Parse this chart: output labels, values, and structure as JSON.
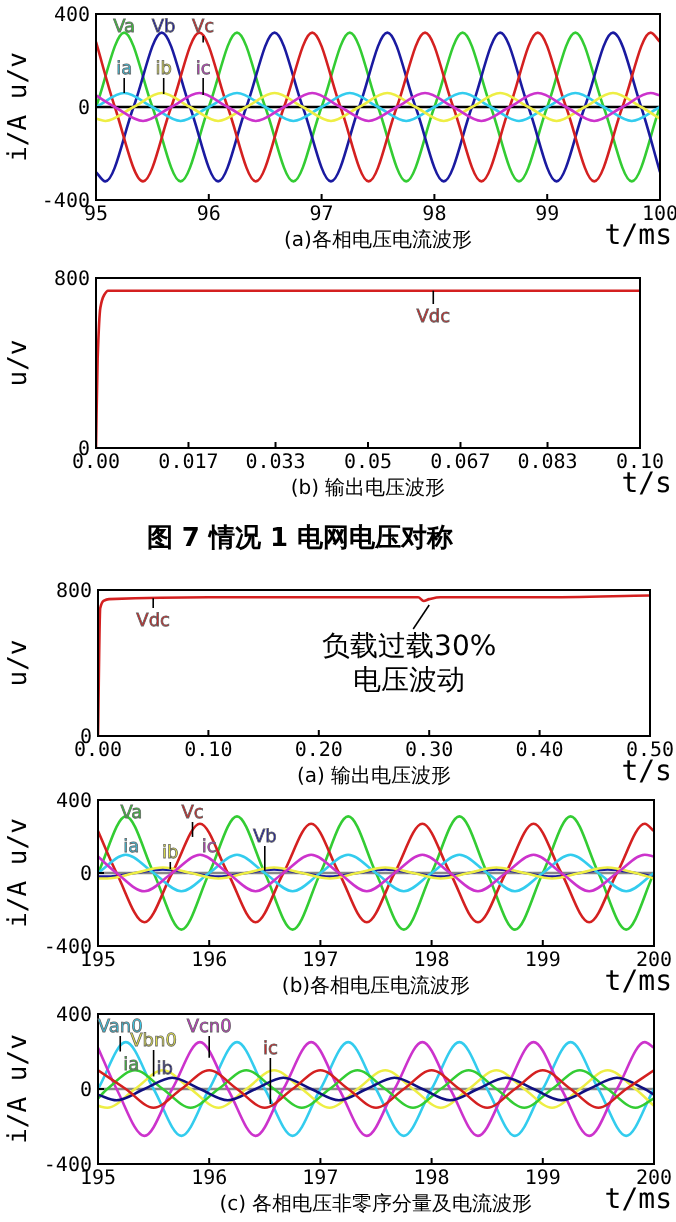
{
  "chart_data": [
    {
      "type": "line",
      "title": "(a)各相电压电流波形",
      "xlabel": "t/ms",
      "ylabel": "i/A u/v",
      "xlim": [
        95,
        100
      ],
      "ylim": [
        -400,
        400
      ],
      "xticks": [
        95,
        96,
        97,
        98,
        99,
        100
      ],
      "yticks": [
        -400,
        0,
        400
      ],
      "ref_lines": [
        {
          "axis": "y",
          "value": 0,
          "color": "#000000"
        }
      ],
      "series": [
        {
          "name": "Va",
          "color": "#33cc33",
          "x": [
            95,
            95.25,
            95.5,
            95.75,
            96,
            96.25,
            96.5,
            96.75,
            97,
            97.25,
            97.5,
            97.75,
            98,
            98.25,
            98.5,
            98.75,
            99,
            99.25,
            99.5,
            99.75,
            100
          ],
          "values": [
            0,
            320,
            0,
            -320,
            0,
            320,
            0,
            -320,
            0,
            320,
            0,
            -320,
            0,
            320,
            0,
            -320,
            0,
            320,
            0,
            -320,
            0
          ]
        },
        {
          "name": "Vb",
          "color": "#1a1aa0",
          "x": [
            95,
            95.083,
            95.333,
            95.583,
            95.833,
            96.083,
            96.333,
            96.583,
            96.833,
            97.083,
            97.333,
            97.583,
            97.833,
            98.083,
            98.333,
            98.583,
            98.833,
            99.083,
            99.333,
            99.583,
            99.833,
            100
          ],
          "values": [
            -280,
            -320,
            0,
            320,
            0,
            -320,
            0,
            320,
            0,
            -320,
            0,
            320,
            0,
            -320,
            0,
            320,
            0,
            -320,
            0,
            320,
            0,
            -280
          ]
        },
        {
          "name": "Vc",
          "color": "#d42020",
          "x": [
            95,
            95.167,
            95.417,
            95.667,
            95.917,
            96.167,
            96.417,
            96.667,
            96.917,
            97.167,
            97.417,
            97.667,
            97.917,
            98.167,
            98.417,
            98.667,
            98.917,
            99.167,
            99.417,
            99.667,
            99.917,
            100
          ],
          "values": [
            280,
            0,
            -320,
            0,
            320,
            0,
            -320,
            0,
            320,
            0,
            -320,
            0,
            320,
            0,
            -320,
            0,
            320,
            0,
            -320,
            0,
            320,
            280
          ]
        },
        {
          "name": "ia",
          "color": "#33ccee",
          "x": [
            95,
            95.25,
            95.5,
            95.75,
            96,
            96.25,
            96.5,
            96.75,
            97,
            97.25,
            97.5,
            97.75,
            98,
            98.25,
            98.5,
            98.75,
            99,
            99.25,
            99.5,
            99.75,
            100
          ],
          "values": [
            0,
            60,
            0,
            -60,
            0,
            60,
            0,
            -60,
            0,
            60,
            0,
            -60,
            0,
            60,
            0,
            -60,
            0,
            60,
            0,
            -60,
            0
          ]
        },
        {
          "name": "ib",
          "color": "#eeee44",
          "x": [
            95,
            95.083,
            95.333,
            95.583,
            95.833,
            96.083,
            96.333,
            96.583,
            96.833,
            97.083,
            97.333,
            97.583,
            97.833,
            98.083,
            98.333,
            98.583,
            98.833,
            99.083,
            99.333,
            99.583,
            99.833,
            100
          ],
          "values": [
            -50,
            -60,
            0,
            60,
            0,
            -60,
            0,
            60,
            0,
            -60,
            0,
            60,
            0,
            -60,
            0,
            60,
            0,
            -60,
            0,
            60,
            0,
            -50
          ]
        },
        {
          "name": "ic",
          "color": "#cc33cc",
          "x": [
            95,
            95.167,
            95.417,
            95.667,
            95.917,
            96.167,
            96.417,
            96.667,
            96.917,
            97.167,
            97.417,
            97.667,
            97.917,
            98.167,
            98.417,
            98.667,
            98.917,
            99.167,
            99.417,
            99.667,
            99.917,
            100
          ],
          "values": [
            50,
            0,
            -60,
            0,
            60,
            0,
            -60,
            0,
            60,
            0,
            -60,
            0,
            60,
            0,
            -60,
            0,
            60,
            0,
            -60,
            0,
            60,
            50
          ]
        }
      ]
    },
    {
      "type": "line",
      "title": "(b) 输出电压波形",
      "xlabel": "t/s",
      "ylabel": "u/v",
      "xlim": [
        0,
        0.1
      ],
      "ylim": [
        0,
        800
      ],
      "xticks": [
        {
          "value": 0,
          "label": "0.00"
        },
        0.017,
        0.033,
        0.05,
        0.067,
        0.083,
        {
          "value": 0.1,
          "label": "0.10"
        }
      ],
      "yticks": [
        0,
        800
      ],
      "annotations": [
        "图 7 情况 1 电网电压对称"
      ],
      "series": [
        {
          "name": "Vdc",
          "color": "#d42020",
          "x": [
            0,
            0.0003,
            0.0008,
            0.0015,
            0.0022,
            0.1
          ],
          "values": [
            0,
            420,
            660,
            720,
            740,
            740
          ]
        }
      ]
    },
    {
      "type": "line",
      "title": "(a) 输出电压波形",
      "xlabel": "t/s",
      "ylabel": "u/v",
      "xlim": [
        0,
        0.5
      ],
      "ylim": [
        0,
        800
      ],
      "xticks": [
        {
          "value": 0,
          "label": "0.00"
        },
        {
          "value": 0.1,
          "label": "0.10"
        },
        {
          "value": 0.2,
          "label": "0.20"
        },
        {
          "value": 0.3,
          "label": "0.30"
        },
        {
          "value": 0.4,
          "label": "0.40"
        },
        {
          "value": 0.5,
          "label": "0.50"
        }
      ],
      "yticks": [
        0,
        800
      ],
      "annotations": [
        {
          "text": "负载过载30%\n电压波动",
          "x": 0.3,
          "y": 740
        }
      ],
      "series": [
        {
          "name": "Vdc",
          "color": "#d42020",
          "x": [
            0,
            0.002,
            0.005,
            0.01,
            0.1,
            0.29,
            0.295,
            0.3,
            0.31,
            0.4,
            0.5
          ],
          "values": [
            0,
            700,
            740,
            750,
            760,
            760,
            740,
            750,
            760,
            760,
            770
          ]
        }
      ]
    },
    {
      "type": "line",
      "title": "(b)各相电压电流波形",
      "xlabel": "t/ms",
      "ylabel": "i/A u/v",
      "xlim": [
        195,
        200
      ],
      "ylim": [
        -400,
        400
      ],
      "xticks": [
        195,
        196,
        197,
        198,
        199,
        200
      ],
      "yticks": [
        -400,
        0,
        400
      ],
      "ref_lines": [
        {
          "axis": "y",
          "value": 0,
          "color": "#888888"
        }
      ],
      "series": [
        {
          "name": "Va",
          "color": "#33cc33",
          "x": [
            195,
            195.25,
            195.5,
            195.75,
            196,
            196.25,
            196.5,
            196.75,
            197,
            197.25,
            197.5,
            197.75,
            198,
            198.25,
            198.5,
            198.75,
            199,
            199.25,
            199.5,
            199.75,
            200
          ],
          "values": [
            0,
            310,
            0,
            -310,
            0,
            310,
            0,
            -310,
            0,
            310,
            0,
            -310,
            0,
            310,
            0,
            -310,
            0,
            310,
            0,
            -310,
            0
          ]
        },
        {
          "name": "Vb",
          "color": "#1a1aa0",
          "x": [
            195,
            195.083,
            195.333,
            195.583,
            195.833,
            196.083,
            196.333,
            196.583,
            196.833,
            197.083,
            197.333,
            197.583,
            197.833,
            198.083,
            198.333,
            198.583,
            198.833,
            199.083,
            199.333,
            199.583,
            199.833,
            200
          ],
          "values": [
            -20,
            -20,
            0,
            20,
            0,
            -20,
            0,
            20,
            0,
            -20,
            0,
            20,
            0,
            -20,
            0,
            20,
            0,
            -20,
            0,
            20,
            0,
            -20
          ]
        },
        {
          "name": "Vc",
          "color": "#d42020",
          "x": [
            195,
            195.167,
            195.417,
            195.667,
            195.917,
            196.167,
            196.417,
            196.667,
            196.917,
            197.167,
            197.417,
            197.667,
            197.917,
            198.167,
            198.417,
            198.667,
            198.917,
            199.167,
            199.417,
            199.667,
            199.917,
            200
          ],
          "values": [
            230,
            0,
            -270,
            0,
            270,
            0,
            -270,
            0,
            270,
            0,
            -270,
            0,
            270,
            0,
            -270,
            0,
            270,
            0,
            -270,
            0,
            270,
            230
          ]
        },
        {
          "name": "ia",
          "color": "#33ccee",
          "x": [
            195,
            195.25,
            195.5,
            195.75,
            196,
            196.25,
            196.5,
            196.75,
            197,
            197.25,
            197.5,
            197.75,
            198,
            198.25,
            198.5,
            198.75,
            199,
            199.25,
            199.5,
            199.75,
            200
          ],
          "values": [
            0,
            100,
            0,
            -100,
            0,
            100,
            0,
            -100,
            0,
            100,
            0,
            -100,
            0,
            100,
            0,
            -100,
            0,
            100,
            0,
            -100,
            0
          ]
        },
        {
          "name": "ib",
          "color": "#eeee44",
          "x": [
            195,
            195.083,
            195.333,
            195.583,
            195.833,
            196.083,
            196.333,
            196.583,
            196.833,
            197.083,
            197.333,
            197.583,
            197.833,
            198.083,
            198.333,
            198.583,
            198.833,
            199.083,
            199.333,
            199.583,
            199.833,
            200
          ],
          "values": [
            -30,
            -30,
            0,
            30,
            0,
            -30,
            0,
            30,
            0,
            -30,
            0,
            30,
            0,
            -30,
            0,
            30,
            0,
            -30,
            0,
            30,
            0,
            -30
          ]
        },
        {
          "name": "ic",
          "color": "#cc33cc",
          "x": [
            195,
            195.167,
            195.417,
            195.667,
            195.917,
            196.167,
            196.417,
            196.667,
            196.917,
            197.167,
            197.417,
            197.667,
            197.917,
            198.167,
            198.417,
            198.667,
            198.917,
            199.167,
            199.417,
            199.667,
            199.917,
            200
          ],
          "values": [
            90,
            0,
            -100,
            0,
            100,
            0,
            -100,
            0,
            100,
            0,
            -100,
            0,
            100,
            0,
            -100,
            0,
            100,
            0,
            -100,
            0,
            100,
            90
          ]
        }
      ]
    },
    {
      "type": "line",
      "title": "(c) 各相电压非零序分量及电流波形",
      "xlabel": "t/ms",
      "ylabel": "i/A u/v",
      "xlim": [
        195,
        200
      ],
      "ylim": [
        -400,
        400
      ],
      "xticks": [
        195,
        196,
        197,
        198,
        199,
        200
      ],
      "yticks": [
        -400,
        0,
        400
      ],
      "ref_lines": [
        {
          "axis": "y",
          "value": 0,
          "color": "#888888"
        }
      ],
      "series": [
        {
          "name": "Van0",
          "color": "#33ccee",
          "x": [
            195,
            195.25,
            195.5,
            195.75,
            196,
            196.25,
            196.5,
            196.75,
            197,
            197.25,
            197.5,
            197.75,
            198,
            198.25,
            198.5,
            198.75,
            199,
            199.25,
            199.5,
            199.75,
            200
          ],
          "values": [
            0,
            250,
            0,
            -250,
            0,
            250,
            0,
            -250,
            0,
            250,
            0,
            -250,
            0,
            250,
            0,
            -250,
            0,
            250,
            0,
            -250,
            0
          ]
        },
        {
          "name": "Vbn0",
          "color": "#eeee44",
          "x": [
            195,
            195.083,
            195.333,
            195.583,
            195.833,
            196.083,
            196.333,
            196.583,
            196.833,
            197.083,
            197.333,
            197.583,
            197.833,
            198.083,
            198.333,
            198.583,
            198.833,
            199.083,
            199.333,
            199.583,
            199.833,
            200
          ],
          "values": [
            -90,
            -100,
            0,
            100,
            0,
            -100,
            0,
            100,
            0,
            -100,
            0,
            100,
            0,
            -100,
            0,
            100,
            0,
            -100,
            0,
            100,
            0,
            -90
          ]
        },
        {
          "name": "Vcn0",
          "color": "#cc33cc",
          "x": [
            195,
            195.167,
            195.417,
            195.667,
            195.917,
            196.167,
            196.417,
            196.667,
            196.917,
            197.167,
            197.417,
            197.667,
            197.917,
            198.167,
            198.417,
            198.667,
            198.917,
            199.167,
            199.417,
            199.667,
            199.917,
            200
          ],
          "values": [
            220,
            0,
            -250,
            0,
            250,
            0,
            -250,
            0,
            250,
            0,
            -250,
            0,
            250,
            0,
            -250,
            0,
            250,
            0,
            -250,
            0,
            250,
            220
          ]
        },
        {
          "name": "ia",
          "color": "#33cc33",
          "x": [
            195,
            195.083,
            195.333,
            195.583,
            195.833,
            196.083,
            196.333,
            196.583,
            196.833,
            197.083,
            197.333,
            197.583,
            197.833,
            198.083,
            198.333,
            198.583,
            198.833,
            199.083,
            199.333,
            199.583,
            199.833,
            200
          ],
          "values": [
            -50,
            0,
            100,
            0,
            -100,
            0,
            100,
            0,
            -100,
            0,
            100,
            0,
            -100,
            0,
            100,
            0,
            -100,
            0,
            100,
            0,
            -100,
            -50
          ]
        },
        {
          "name": "ib",
          "color": "#101080",
          "x": [
            195,
            195.167,
            195.417,
            195.667,
            195.917,
            196.167,
            196.417,
            196.667,
            196.917,
            197.167,
            197.417,
            197.667,
            197.917,
            198.167,
            198.417,
            198.667,
            198.917,
            199.167,
            199.417,
            199.667,
            199.917,
            200
          ],
          "values": [
            -30,
            -60,
            0,
            60,
            0,
            -60,
            0,
            60,
            0,
            -60,
            0,
            60,
            0,
            -60,
            0,
            60,
            0,
            -60,
            0,
            60,
            0,
            -30
          ]
        },
        {
          "name": "ic",
          "color": "#d42020",
          "x": [
            195,
            195.25,
            195.5,
            195.75,
            196,
            196.25,
            196.5,
            196.75,
            197,
            197.25,
            197.5,
            197.75,
            198,
            198.25,
            198.5,
            198.75,
            199,
            199.25,
            199.5,
            199.75,
            200
          ],
          "values": [
            100,
            0,
            -100,
            0,
            100,
            0,
            -100,
            0,
            100,
            0,
            -100,
            0,
            100,
            0,
            -100,
            0,
            100,
            0,
            -100,
            0,
            100
          ]
        }
      ]
    }
  ]
}
